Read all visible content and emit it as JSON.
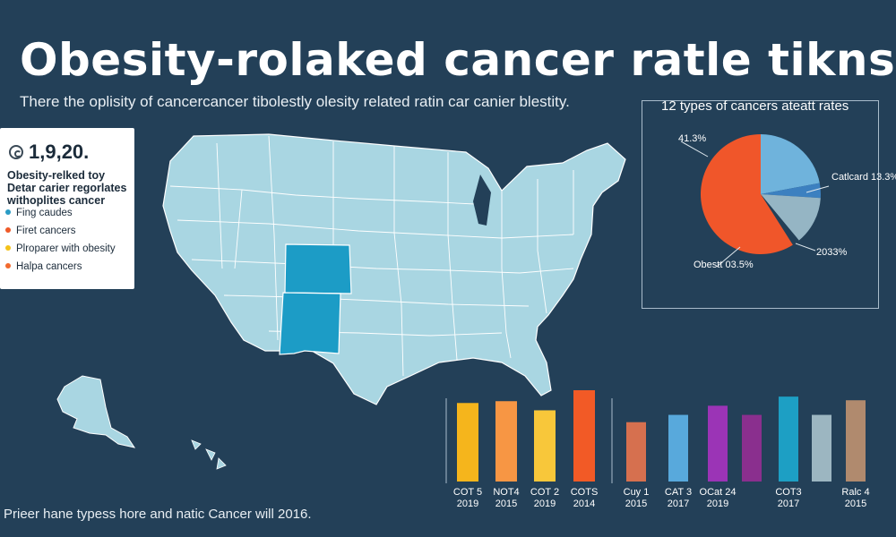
{
  "title": "Obesity-rolaked cancer ratle tikns",
  "subtitle": "There the oplisity of cancercancer tibolestly olesity related ratin car canier blestity.",
  "legend": {
    "stat": "1,9,20.",
    "stat_icon": "spiral-icon",
    "description_lines": [
      "Obesity-relked toy",
      "Detar carier regorlates",
      "withoplites cancer"
    ],
    "items": [
      {
        "label": "Fing caudes",
        "color": "#2a9cc5"
      },
      {
        "label": "Firet cancers",
        "color": "#ef5a28"
      },
      {
        "label": "Plroparer with obesity",
        "color": "#f4c21a"
      },
      {
        "label": "Halpa cancers",
        "color": "#f26a2e"
      }
    ]
  },
  "colors": {
    "background": "#234058",
    "map_fill": "#a9d6e2",
    "map_highlight": "#1c9cc6",
    "map_border": "#ffffff"
  },
  "chart_data": [
    {
      "type": "pie",
      "title": "12 types of cancers ateatt rates",
      "slices": [
        {
          "label": "Catlcard 13.3%",
          "value": 22,
          "color": "#6fb3dc"
        },
        {
          "label": "",
          "value": 4,
          "color": "#3c80c0"
        },
        {
          "label": "2033%",
          "value": 13,
          "color": "#95b5c4"
        },
        {
          "label": "",
          "value": 2,
          "color": "#234058"
        },
        {
          "label": "Obestt 03.5%",
          "value": 59,
          "color": "#f0562a"
        }
      ],
      "outer_labels": {
        "top_left": "41.3%"
      }
    },
    {
      "type": "bar",
      "group": "left",
      "categories": [
        "COT 5\n2019",
        "NOT4\n2015",
        "COT 2\n2019",
        "COTS\n2014"
      ],
      "values": [
        86,
        88,
        78,
        100
      ],
      "colors": [
        "#f5b51c",
        "#f79644",
        "#f8c73a",
        "#f25a26"
      ],
      "ylim": [
        0,
        100
      ]
    },
    {
      "type": "bar",
      "group": "right",
      "categories": [
        "Cuy 1\n2015",
        "CAT 3\n2017",
        "OCat 24\n2019",
        "",
        "COT3\n2017",
        "",
        "Ralc 4\n2015"
      ],
      "values": [
        65,
        73,
        83,
        73,
        93,
        73,
        89
      ],
      "colors": [
        "#d6704f",
        "#58a9dc",
        "#9b34b6",
        "#8a2f8e",
        "#1d9fc4",
        "#9cb6c1",
        "#b08a6e"
      ],
      "ylim": [
        0,
        100
      ]
    }
  ],
  "footnote": "Prieer hane typess hore and natic Cancer will 2016."
}
